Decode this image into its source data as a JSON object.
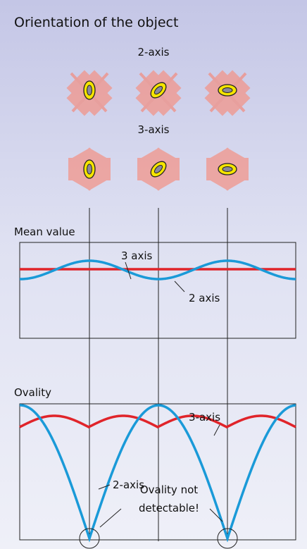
{
  "header": {
    "title": "Orientation of the object"
  },
  "orientations": {
    "row_1": "2-axis",
    "row_2": "3-axis"
  },
  "mean_value": {
    "title": "Mean value",
    "label_red": "3 axis",
    "label_blue": "2 axis"
  },
  "ovality": {
    "title": "Ovality",
    "label_red": "3-axis",
    "label_blue": "2-axis",
    "note_line_1": "Ovality not",
    "note_line_2": "detectable!"
  }
}
